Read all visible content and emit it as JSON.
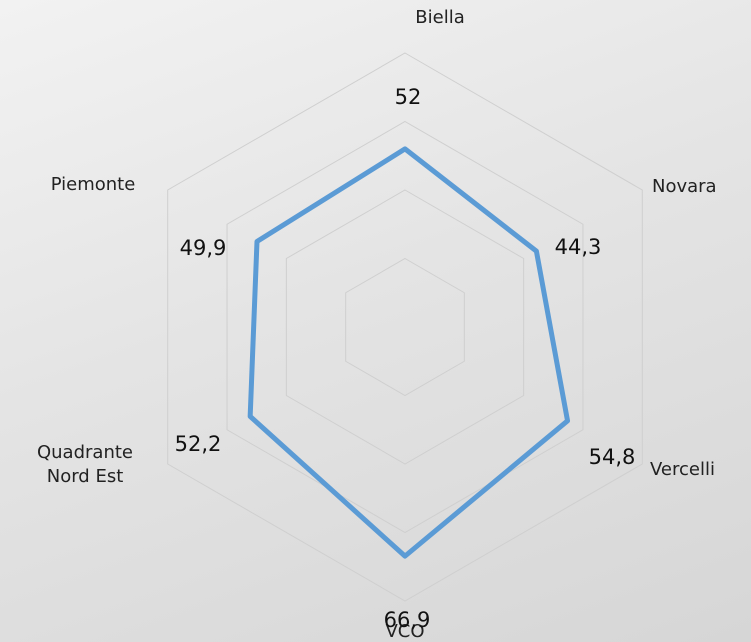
{
  "chart_data": {
    "type": "radar",
    "categories": [
      "Biella",
      "Novara",
      "Vercelli",
      "VCO",
      "Quadrante Nord Est",
      "Piemonte"
    ],
    "values": [
      52,
      44.3,
      54.8,
      66.9,
      52.2,
      49.9
    ],
    "value_labels": [
      "52",
      "44,3",
      "54,8",
      "66,9",
      "52,2",
      "49,9"
    ],
    "color": "#5b9bd5",
    "ylim": [
      0,
      80
    ],
    "yticks": [
      20,
      40,
      60,
      80
    ],
    "grid": true
  }
}
